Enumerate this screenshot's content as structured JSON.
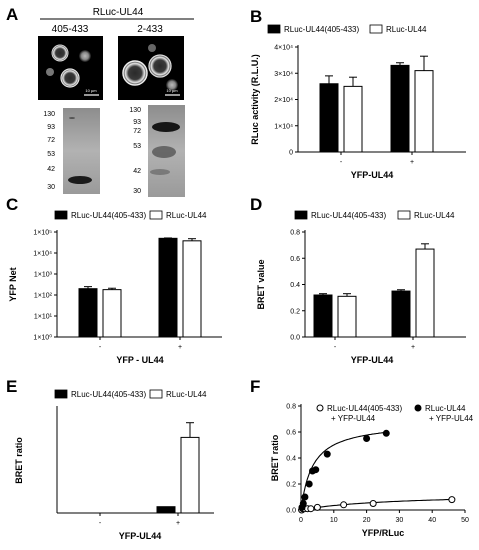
{
  "panel_letters": [
    "A",
    "B",
    "C",
    "D",
    "E",
    "F"
  ],
  "panel_a": {
    "title": "RLuc-UL44",
    "images": [
      {
        "label": "405-433",
        "scale_bar": "10 µm"
      },
      {
        "label": "2-433",
        "scale_bar": "10 µm"
      }
    ],
    "blots": [
      {
        "markers": [
          "130",
          "93",
          "72",
          "53",
          "42",
          "30"
        ]
      },
      {
        "markers": [
          "130",
          "93",
          "72",
          "53",
          "42",
          "30"
        ]
      }
    ]
  },
  "colors": {
    "filled": "#000000",
    "open": "#ffffff"
  },
  "chart_data": [
    {
      "panel": "B",
      "type": "bar",
      "categories": [
        "-",
        "+"
      ],
      "xlabel": "YFP-UL44",
      "ylabel": "RLuc activity (R.L.U.)",
      "ylim": [
        0,
        40000
      ],
      "yticks": [
        "0",
        "1×10⁴",
        "2×10⁴",
        "3×10⁴",
        "4×10⁴"
      ],
      "series": [
        {
          "name": "RLuc-UL44(405-433)",
          "fill": "filled",
          "values": [
            26000,
            33000
          ],
          "errors": [
            3000,
            1000
          ]
        },
        {
          "name": "RLuc-UL44",
          "fill": "open",
          "values": [
            25000,
            31000
          ],
          "errors": [
            3500,
            5500
          ]
        }
      ],
      "legend": "top"
    },
    {
      "panel": "C",
      "type": "bar",
      "scale": "log",
      "categories": [
        "-",
        "+"
      ],
      "xlabel": "YFP - UL44",
      "ylabel": "YFP Net",
      "ylim": [
        1,
        100000
      ],
      "yticks": [
        "1×10⁰",
        "1×10¹",
        "1×10²",
        "1×10³",
        "1×10⁴",
        "1×10⁵"
      ],
      "series": [
        {
          "name": "RLuc-UL44(405-433)",
          "fill": "filled",
          "values": [
            200,
            50000
          ],
          "errors": [
            50,
            2000
          ]
        },
        {
          "name": "RLuc-UL44",
          "fill": "open",
          "values": [
            180,
            38000
          ],
          "errors": [
            30,
            10000
          ]
        }
      ],
      "legend": "top"
    },
    {
      "panel": "D",
      "type": "bar",
      "categories": [
        "-",
        "+"
      ],
      "xlabel": "YFP-UL44",
      "ylabel": "BRET value",
      "ylim": [
        0,
        0.8
      ],
      "yticks": [
        "0.0",
        "0.2",
        "0.4",
        "0.6",
        "0.8"
      ],
      "series": [
        {
          "name": "RLuc-UL44(405-433)",
          "fill": "filled",
          "values": [
            0.32,
            0.35
          ],
          "errors": [
            0.01,
            0.01
          ]
        },
        {
          "name": "RLuc-UL44",
          "fill": "open",
          "values": [
            0.31,
            0.67
          ],
          "errors": [
            0.02,
            0.04
          ]
        }
      ],
      "legend": "top"
    },
    {
      "panel": "E",
      "type": "bar",
      "categories": [
        "-",
        "+"
      ],
      "xlabel": "YFP-UL44",
      "ylabel": "BRET ratio",
      "ylim": [
        0,
        0.5
      ],
      "yticks": [],
      "series": [
        {
          "name": "RLuc-UL44(405-433)",
          "fill": "filled",
          "values": [
            0,
            0.03
          ],
          "errors": [
            0,
            0
          ]
        },
        {
          "name": "RLuc-UL44",
          "fill": "open",
          "values": [
            0,
            0.36
          ],
          "errors": [
            0,
            0.07
          ]
        }
      ],
      "legend": "top"
    },
    {
      "panel": "F",
      "type": "scatter",
      "xlabel": "YFP/RLuc",
      "ylabel": "BRET ratio",
      "xlim": [
        0,
        50
      ],
      "ylim": [
        0,
        0.8
      ],
      "xticks": [
        "0",
        "10",
        "20",
        "30",
        "40",
        "50"
      ],
      "yticks": [
        "0.0",
        "0.2",
        "0.4",
        "0.6",
        "0.8"
      ],
      "series": [
        {
          "name": "RLuc-UL44(405-433) + YFP-UL44",
          "fill": "open",
          "x": [
            0.2,
            0.5,
            1,
            2,
            3,
            5,
            13,
            22,
            46
          ],
          "y": [
            0.0,
            0.01,
            0.01,
            0.01,
            0.01,
            0.02,
            0.04,
            0.05,
            0.08
          ],
          "fit": {
            "bmax": 0.13,
            "kd": 28
          }
        },
        {
          "name": "RLuc-UL44 + YFP-UL44",
          "fill": "filled",
          "x": [
            0.3,
            0.7,
            1.2,
            2.5,
            3.5,
            4.5,
            8,
            20,
            26
          ],
          "y": [
            0.02,
            0.05,
            0.1,
            0.2,
            0.3,
            0.31,
            0.43,
            0.55,
            0.59
          ],
          "fit": {
            "bmax": 0.68,
            "kd": 3.6
          }
        }
      ]
    }
  ]
}
